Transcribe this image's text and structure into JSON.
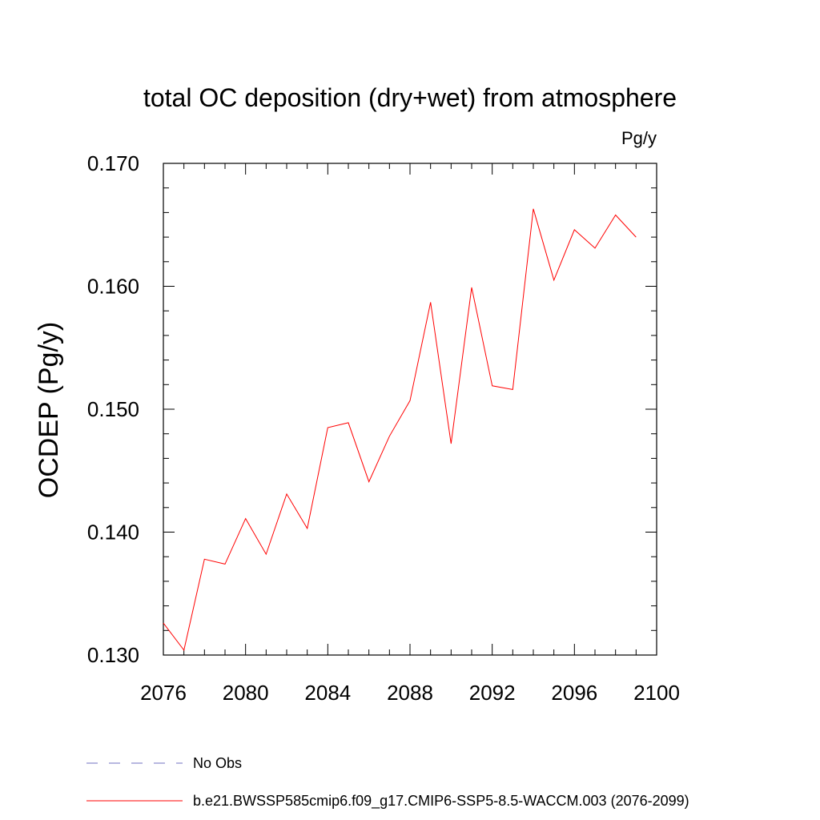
{
  "chart_data": {
    "type": "line",
    "title": "total OC deposition (dry+wet) from atmosphere",
    "units_label": "Pg/y",
    "ylabel": "OCDEP  (Pg/y)",
    "xlabel": "",
    "xlim": [
      2076,
      2100
    ],
    "ylim": [
      0.13,
      0.17
    ],
    "x_ticks": [
      "2076",
      "2080",
      "2084",
      "2088",
      "2092",
      "2096",
      "2100"
    ],
    "y_ticks": [
      "0.130",
      "0.140",
      "0.150",
      "0.160",
      "0.170"
    ],
    "grid": false,
    "series": [
      {
        "name": "b.e21.BWSSP585cmip6.f09_g17.CMIP6-SSP5-8.5-WACCM.003 (2076-2099)",
        "color": "#ff0000",
        "x": [
          2076,
          2077,
          2078,
          2079,
          2080,
          2081,
          2082,
          2083,
          2084,
          2085,
          2086,
          2087,
          2088,
          2089,
          2090,
          2091,
          2092,
          2093,
          2094,
          2095,
          2096,
          2097,
          2098,
          2099
        ],
        "y": [
          0.1326,
          0.1304,
          0.1378,
          0.1374,
          0.1411,
          0.1382,
          0.1431,
          0.1403,
          0.1485,
          0.1489,
          0.1441,
          0.1478,
          0.1507,
          0.1587,
          0.1472,
          0.1599,
          0.1519,
          0.1516,
          0.1663,
          0.1605,
          0.1646,
          0.1631,
          0.1658,
          0.164
        ]
      }
    ],
    "legend": {
      "position": "bottom-left",
      "entries": [
        {
          "label": "No Obs",
          "color": "#7070c0",
          "style": "dashed"
        },
        {
          "label": "b.e21.BWSSP585cmip6.f09_g17.CMIP6-SSP5-8.5-WACCM.003 (2076-2099)",
          "color": "#ff0000",
          "style": "solid"
        }
      ]
    }
  }
}
